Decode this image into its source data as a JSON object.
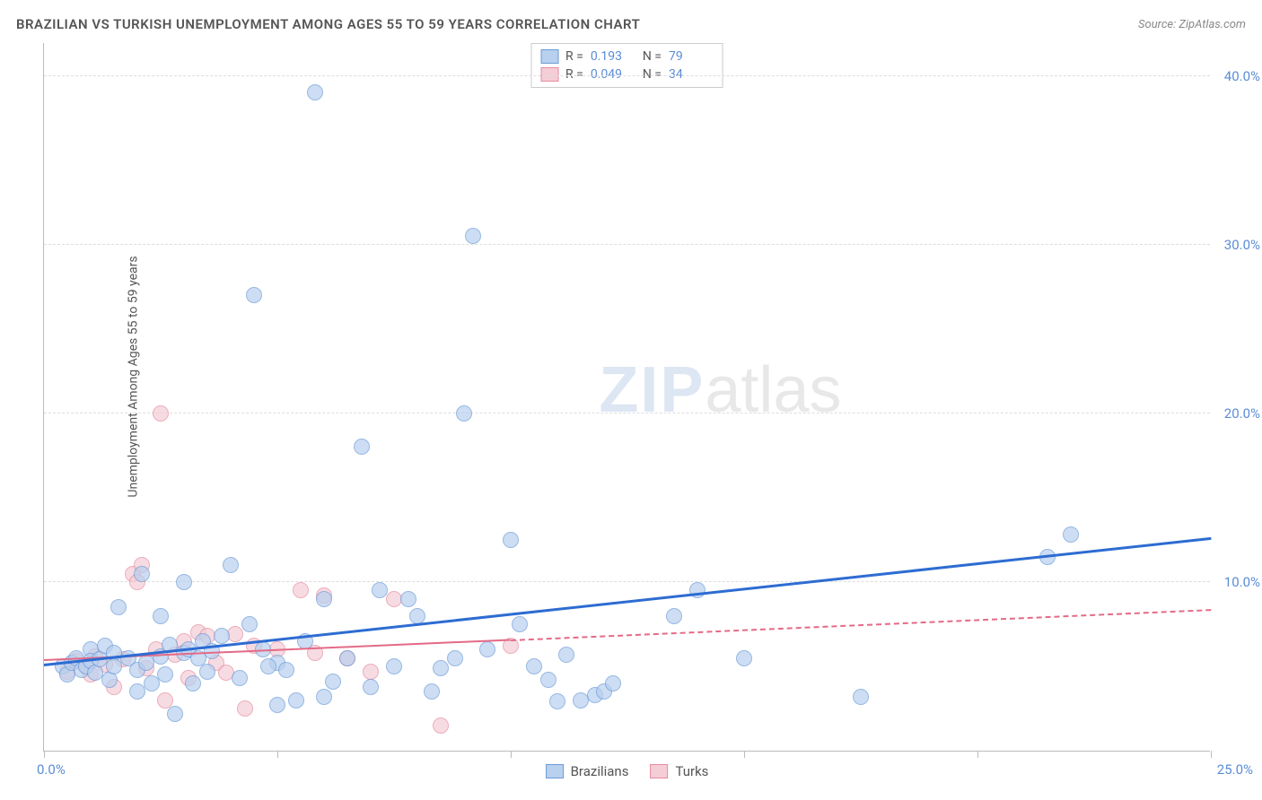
{
  "title": "BRAZILIAN VS TURKISH UNEMPLOYMENT AMONG AGES 55 TO 59 YEARS CORRELATION CHART",
  "source_label": "Source: ZipAtlas.com",
  "watermark_bold": "ZIP",
  "watermark_light": "atlas",
  "chart": {
    "type": "scatter",
    "xlim": [
      0,
      25
    ],
    "ylim": [
      0,
      42
    ],
    "x_ticks": [
      0,
      5,
      10,
      15,
      20,
      25
    ],
    "x_tick_labels": [
      "0.0%",
      "",
      "",
      "",
      "",
      "25.0%"
    ],
    "y_gridlines": [
      10,
      20,
      30,
      40
    ],
    "y_tick_labels": [
      "10.0%",
      "20.0%",
      "30.0%",
      "40.0%"
    ],
    "ylabel": "Unemployment Among Ages 55 to 59 years",
    "background_color": "#ffffff",
    "grid_color": "#dddddd",
    "axis_color": "#bbbbbb",
    "axis_label_color": "#5b8dd6",
    "point_radius": 9,
    "point_opacity": 0.7
  },
  "series": {
    "brazilians": {
      "label": "Brazilians",
      "fill": "#b9d0ee",
      "stroke": "#6a9bd8",
      "trend_color": "#2d6cd2",
      "trend_width": 3,
      "trend_dash": "none",
      "trend": {
        "x1": 0,
        "y1": 5.0,
        "x2": 25,
        "y2": 12.5
      },
      "R": "0.193",
      "N": "79",
      "points": [
        [
          0.4,
          5.0
        ],
        [
          0.5,
          4.5
        ],
        [
          0.6,
          5.2
        ],
        [
          0.7,
          5.5
        ],
        [
          0.8,
          4.8
        ],
        [
          0.9,
          5.0
        ],
        [
          1.0,
          6.0
        ],
        [
          1.0,
          5.3
        ],
        [
          1.1,
          4.6
        ],
        [
          1.2,
          5.4
        ],
        [
          1.3,
          6.2
        ],
        [
          1.4,
          4.2
        ],
        [
          1.5,
          5.8
        ],
        [
          1.5,
          5.0
        ],
        [
          1.6,
          8.5
        ],
        [
          1.8,
          5.5
        ],
        [
          2.0,
          3.5
        ],
        [
          2.0,
          4.8
        ],
        [
          2.1,
          10.5
        ],
        [
          2.2,
          5.2
        ],
        [
          2.3,
          4.0
        ],
        [
          2.5,
          5.6
        ],
        [
          2.5,
          8.0
        ],
        [
          2.6,
          4.5
        ],
        [
          2.7,
          6.3
        ],
        [
          2.8,
          2.2
        ],
        [
          3.0,
          10.0
        ],
        [
          3.0,
          5.8
        ],
        [
          3.2,
          4.0
        ],
        [
          3.4,
          6.5
        ],
        [
          3.5,
          4.7
        ],
        [
          3.6,
          5.9
        ],
        [
          3.8,
          6.8
        ],
        [
          4.0,
          11.0
        ],
        [
          4.2,
          4.3
        ],
        [
          4.4,
          7.5
        ],
        [
          4.5,
          27.0
        ],
        [
          4.7,
          6.0
        ],
        [
          5.0,
          2.7
        ],
        [
          5.0,
          5.2
        ],
        [
          5.2,
          4.8
        ],
        [
          5.4,
          3.0
        ],
        [
          5.6,
          6.5
        ],
        [
          5.8,
          39.0
        ],
        [
          6.0,
          3.2
        ],
        [
          6.0,
          9.0
        ],
        [
          6.2,
          4.1
        ],
        [
          6.5,
          5.5
        ],
        [
          6.8,
          18.0
        ],
        [
          7.0,
          3.8
        ],
        [
          7.2,
          9.5
        ],
        [
          7.5,
          5.0
        ],
        [
          7.8,
          9.0
        ],
        [
          8.0,
          8.0
        ],
        [
          8.3,
          3.5
        ],
        [
          8.5,
          4.9
        ],
        [
          8.8,
          5.5
        ],
        [
          9.0,
          20.0
        ],
        [
          9.2,
          30.5
        ],
        [
          9.5,
          6.0
        ],
        [
          10.0,
          12.5
        ],
        [
          10.2,
          7.5
        ],
        [
          10.5,
          5.0
        ],
        [
          10.8,
          4.2
        ],
        [
          11.0,
          2.9
        ],
        [
          11.2,
          5.7
        ],
        [
          11.5,
          3.0
        ],
        [
          11.8,
          3.3
        ],
        [
          12.0,
          3.5
        ],
        [
          12.2,
          4.0
        ],
        [
          13.5,
          8.0
        ],
        [
          14.0,
          9.5
        ],
        [
          15.0,
          5.5
        ],
        [
          17.5,
          3.2
        ],
        [
          21.5,
          11.5
        ],
        [
          22.0,
          12.8
        ],
        [
          3.1,
          6.0
        ],
        [
          3.3,
          5.5
        ],
        [
          4.8,
          5.0
        ]
      ]
    },
    "turks": {
      "label": "Turks",
      "fill": "#f5cdd6",
      "stroke": "#e48ba0",
      "trend_color": "#e46a87",
      "trend_width": 2,
      "trend_solid_until": 10,
      "trend_dash_after": "4,4",
      "trend": {
        "x1": 0,
        "y1": 5.3,
        "x2": 25,
        "y2": 8.3
      },
      "R": "0.049",
      "N": "34",
      "points": [
        [
          0.5,
          4.7
        ],
        [
          0.7,
          5.3
        ],
        [
          0.9,
          5.0
        ],
        [
          1.0,
          4.5
        ],
        [
          1.1,
          5.6
        ],
        [
          1.3,
          5.1
        ],
        [
          1.5,
          3.8
        ],
        [
          1.7,
          5.4
        ],
        [
          1.9,
          10.5
        ],
        [
          2.0,
          10.0
        ],
        [
          2.1,
          11.0
        ],
        [
          2.2,
          4.9
        ],
        [
          2.4,
          6.0
        ],
        [
          2.5,
          20.0
        ],
        [
          2.6,
          3.0
        ],
        [
          2.8,
          5.7
        ],
        [
          3.0,
          6.5
        ],
        [
          3.1,
          4.3
        ],
        [
          3.3,
          7.0
        ],
        [
          3.5,
          6.8
        ],
        [
          3.7,
          5.2
        ],
        [
          3.9,
          4.6
        ],
        [
          4.1,
          6.9
        ],
        [
          4.3,
          2.5
        ],
        [
          4.5,
          6.2
        ],
        [
          5.0,
          6.0
        ],
        [
          5.5,
          9.5
        ],
        [
          5.8,
          5.8
        ],
        [
          6.0,
          9.2
        ],
        [
          6.5,
          5.5
        ],
        [
          7.0,
          4.7
        ],
        [
          7.5,
          9.0
        ],
        [
          8.5,
          1.5
        ],
        [
          10.0,
          6.2
        ]
      ]
    }
  },
  "legend_top": {
    "R_label": "R  =",
    "N_label": "N  ="
  },
  "legend_bottom": {
    "items": [
      "brazilians",
      "turks"
    ]
  }
}
